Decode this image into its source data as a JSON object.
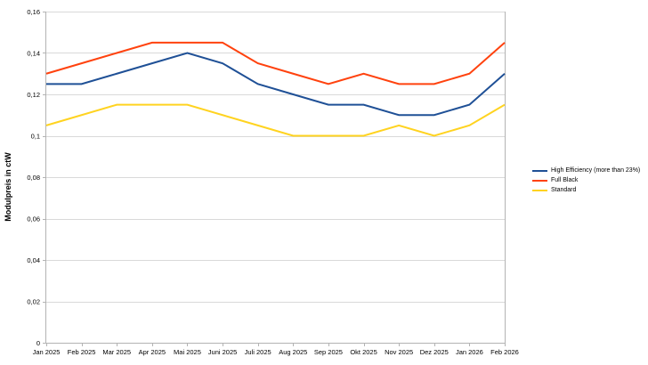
{
  "colors": {
    "background": "#FFFFFF",
    "gridline": "#D9D9D9",
    "axis": "#B3B3B3",
    "text": "#000000"
  },
  "chart_data": {
    "type": "line",
    "title": "",
    "xlabel": "",
    "ylabel": "Modulpreis in ctW",
    "ylim": [
      0,
      0.16
    ],
    "ytick_step": 0.02,
    "grid": true,
    "legend_position": "right",
    "decimal_separator": ",",
    "yticks": [
      {
        "label": "0",
        "value": 0
      },
      {
        "label": "0,02",
        "value": 0.02
      },
      {
        "label": "0,04",
        "value": 0.04
      },
      {
        "label": "0,06",
        "value": 0.06
      },
      {
        "label": "0,08",
        "value": 0.08
      },
      {
        "label": "0,1",
        "value": 0.1
      },
      {
        "label": "0,12",
        "value": 0.12
      },
      {
        "label": "0,14",
        "value": 0.14
      },
      {
        "label": "0,16",
        "value": 0.16
      }
    ],
    "categories": [
      "Jan 2025",
      "Feb 2025",
      "Mar 2025",
      "Apr 2025",
      "Mai 2025",
      "Juni 2025",
      "Juli 2025",
      "Aug 2025",
      "Sep 2025",
      "Okt 2025",
      "Nov 2025",
      "Dez 2025",
      "Jan 2026",
      "Feb 2026"
    ],
    "series": [
      {
        "name": "High Efficiency (more than 23%)",
        "color": "#1F5096",
        "values": [
          0.125,
          0.125,
          0.13,
          0.135,
          0.14,
          0.135,
          0.125,
          0.12,
          0.115,
          0.115,
          0.11,
          0.11,
          0.115,
          0.13
        ]
      },
      {
        "name": "Full Black",
        "color": "#FF420E",
        "values": [
          0.13,
          0.135,
          0.14,
          0.145,
          0.145,
          0.145,
          0.135,
          0.13,
          0.125,
          0.13,
          0.125,
          0.125,
          0.13,
          0.145
        ]
      },
      {
        "name": "Standard",
        "color": "#FFD320",
        "values": [
          0.105,
          0.11,
          0.115,
          0.115,
          0.115,
          0.11,
          0.105,
          0.1,
          0.1,
          0.1,
          0.105,
          0.1,
          0.105,
          0.115
        ]
      }
    ]
  }
}
